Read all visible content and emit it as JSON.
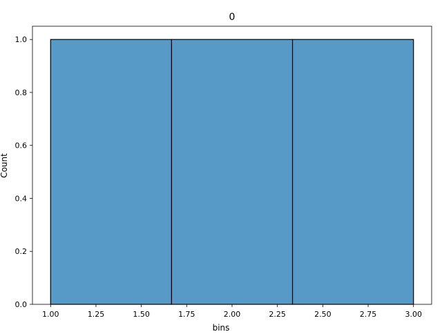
{
  "chart_data": {
    "type": "bar",
    "title": "0",
    "xlabel": "bins",
    "ylabel": "Count",
    "xlim": [
      0.9,
      3.1
    ],
    "ylim": [
      0,
      1.05
    ],
    "grid": false,
    "bar_color": "#5799c7",
    "edge_color": "#000000",
    "bins": [
      {
        "start": 1.0,
        "end": 1.6667,
        "count": 1
      },
      {
        "start": 1.6667,
        "end": 2.3333,
        "count": 1
      },
      {
        "start": 2.3333,
        "end": 3.0,
        "count": 1
      }
    ],
    "xticks": [
      1.0,
      1.25,
      1.5,
      1.75,
      2.0,
      2.25,
      2.5,
      2.75,
      3.0
    ],
    "xtick_labels": [
      "1.00",
      "1.25",
      "1.50",
      "1.75",
      "2.00",
      "2.25",
      "2.50",
      "2.75",
      "3.00"
    ],
    "yticks": [
      0,
      0.2,
      0.4,
      0.6,
      0.8,
      1.0
    ],
    "ytick_labels": [
      "0.0",
      "0.2",
      "0.4",
      "0.6",
      "0.8",
      "1.0"
    ]
  }
}
